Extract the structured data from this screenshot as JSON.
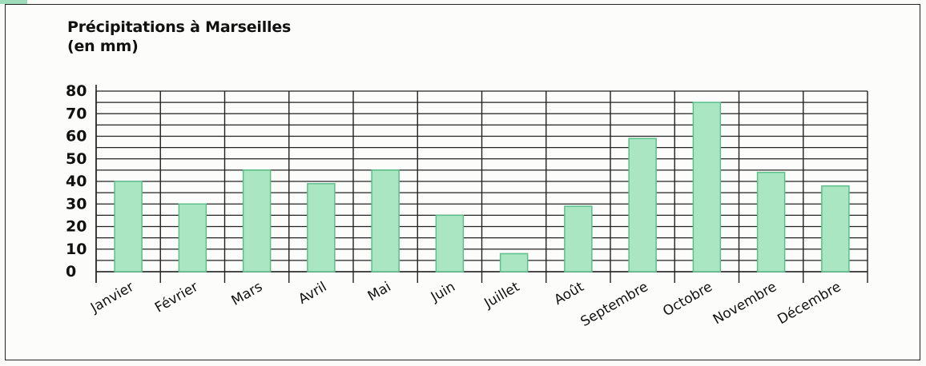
{
  "chart_data": {
    "type": "bar",
    "title": "Précipitations à Marseilles",
    "subtitle": "(en mm)",
    "xlabel": "",
    "ylabel": "",
    "categories": [
      "Janvier",
      "Février",
      "Mars",
      "Avril",
      "Mai",
      "Juin",
      "Juillet",
      "Août",
      "Septembre",
      "Octobre",
      "Novembre",
      "Décembre"
    ],
    "values": [
      40,
      30,
      45,
      39,
      45,
      25,
      8,
      29,
      59,
      75,
      44,
      38
    ],
    "ylim": [
      0,
      80
    ],
    "yticks": [
      "80",
      "70",
      "60",
      "50",
      "40",
      "30",
      "20",
      "10",
      "0"
    ],
    "grid": true,
    "bar_color": "#a9e6c1",
    "bar_border": "#5dbf8a"
  }
}
